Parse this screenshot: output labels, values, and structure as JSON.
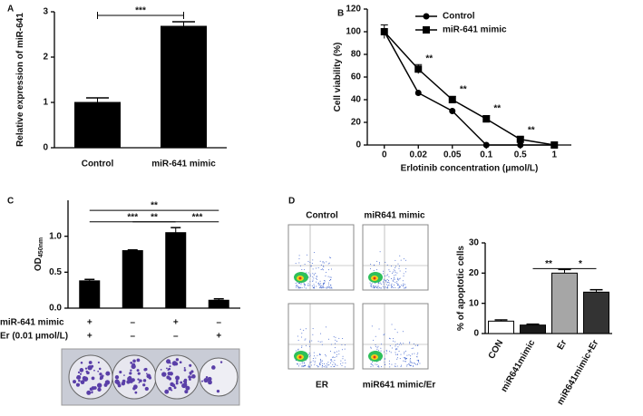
{
  "chart_data": [
    {
      "type": "bar",
      "panel": "A",
      "ylabel": "Relative expression of miR-641",
      "categories": [
        "Control",
        "miR-641 mimic"
      ],
      "values": [
        1.0,
        2.68
      ],
      "errors": [
        0.1,
        0.1
      ],
      "colors": [
        "#000000",
        "#000000"
      ],
      "ylim": [
        0,
        3
      ],
      "yticks": [
        0,
        1,
        2,
        3
      ],
      "annotations": [
        "***"
      ]
    },
    {
      "type": "line",
      "panel": "B",
      "ylabel": "Cell viability (%)",
      "xlabel": "Erlotinib concentration (μmol/L)",
      "categories": [
        "0",
        "0.02",
        "0.05",
        "0.1",
        "0.5",
        "1"
      ],
      "series": [
        {
          "name": "Control",
          "color": "#000000",
          "marker": "circle",
          "values": [
            100,
            46,
            30,
            0,
            0,
            0
          ]
        },
        {
          "name": "miR-641 mimic",
          "color": "#000000",
          "marker": "square",
          "values": [
            100,
            67,
            40,
            23,
            5,
            0
          ],
          "errors": [
            6,
            4,
            3,
            3,
            2,
            0
          ]
        }
      ],
      "ylim": [
        0,
        120
      ],
      "yticks": [
        0,
        20,
        40,
        60,
        80,
        100,
        120
      ],
      "annotations": [
        "**",
        "**",
        "**",
        "**"
      ]
    },
    {
      "type": "bar",
      "panel": "C",
      "ylabel": "OD",
      "ylabel_sub": "450nm",
      "categories": [
        null,
        null,
        null,
        null
      ],
      "values": [
        0.38,
        0.8,
        1.05,
        0.11
      ],
      "errors": [
        0.02,
        0.01,
        0.07,
        0.02
      ],
      "colors": [
        "#000000",
        "#000000",
        "#000000",
        "#000000"
      ],
      "ylim": [
        0,
        1.5
      ],
      "yticks": [
        {
          "value": 0,
          "label": "0.0"
        },
        {
          "value": 0.5,
          "label": "0.5"
        },
        {
          "value": 1,
          "label": "1.0"
        }
      ],
      "conditions": [
        {
          "name": "miR-641 mimic",
          "values": [
            "+",
            "–",
            "+",
            "–"
          ]
        },
        {
          "name": "Er (0.01 μmol/L)",
          "values": [
            "+",
            "–",
            "–",
            "+"
          ]
        }
      ],
      "annotations": [
        "**",
        "***",
        "**",
        "***"
      ]
    },
    {
      "type": "bar",
      "panel": "D",
      "ylabel": "% of apoptotic cells",
      "categories": [
        "CON",
        "miR641mimic",
        "Er",
        "miR641mimic+Er"
      ],
      "values": [
        4.1,
        2.8,
        20,
        13.7
      ],
      "errors": [
        0.4,
        0.3,
        1.2,
        0.8
      ],
      "colors": [
        "#ffffff",
        "#1a1a1a",
        "#a6a6a6",
        "#333333"
      ],
      "ylim": [
        0,
        30
      ],
      "yticks": [
        0,
        10,
        20,
        30
      ],
      "annotations": [
        "**",
        "*"
      ],
      "flow_labels": [
        "Control",
        "miR641 mimic",
        "ER",
        "miR641 mimic/Er"
      ]
    }
  ]
}
